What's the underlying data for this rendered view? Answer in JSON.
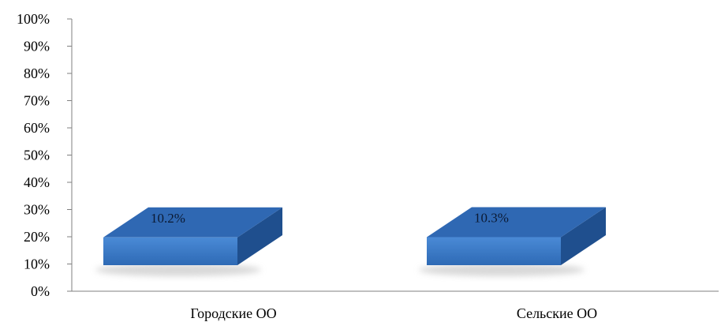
{
  "chart_data": {
    "type": "bar",
    "style": "3d-column",
    "categories": [
      "Городские ОО",
      "Сельские ОО"
    ],
    "values": [
      10.2,
      10.3
    ],
    "data_labels": [
      "10.2%",
      "10.3%"
    ],
    "y_ticks": [
      "0%",
      "10%",
      "20%",
      "30%",
      "40%",
      "50%",
      "60%",
      "70%",
      "80%",
      "90%",
      "100%"
    ],
    "ylim": [
      0,
      100
    ],
    "y_unit": "%",
    "grid": false,
    "legend": "none",
    "colors": {
      "front": "#3a7cc8",
      "top": "#2f68b3",
      "side": "#1f4f8e",
      "axis": "#808080",
      "shadow": "#c8c8c8"
    }
  }
}
